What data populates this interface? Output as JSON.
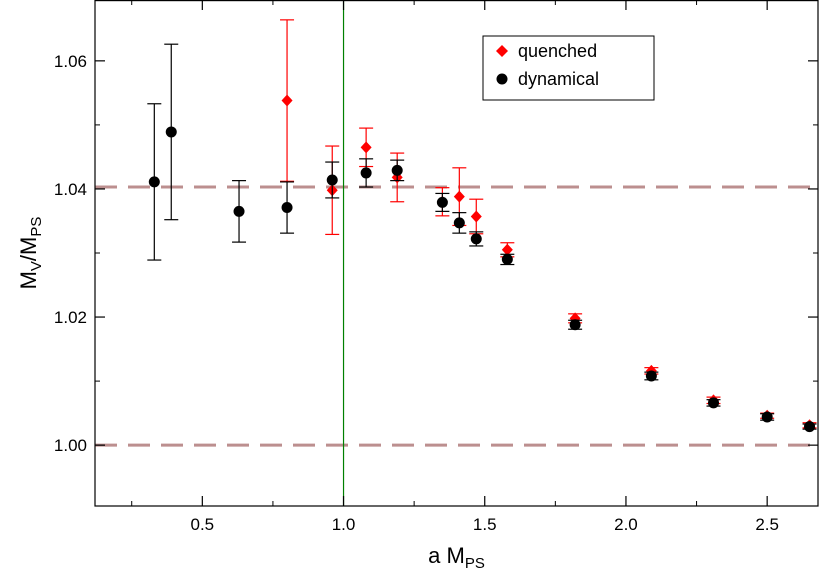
{
  "chart_data": {
    "type": "scatter",
    "xlabel": "a M",
    "xlabel_sub": "PS",
    "ylabel_parts": [
      "M",
      "V",
      "/M",
      "PS"
    ],
    "xlim": [
      0.12,
      2.68
    ],
    "ylim": [
      0.9905,
      1.0695
    ],
    "x_ticks": [
      0.5,
      1.0,
      1.5,
      2.0,
      2.5
    ],
    "x_tick_labels": [
      "0.5",
      "1.0",
      "1.5",
      "2.0",
      "2.5"
    ],
    "y_ticks": [
      1.0,
      1.02,
      1.04,
      1.06
    ],
    "y_tick_labels": [
      "1.00",
      "1.02",
      "1.04",
      "1.06"
    ],
    "grid": false,
    "legend_position": "top-right",
    "reference_lines": {
      "horizontal": [
        1.0,
        1.0403
      ],
      "horizontal_color": "#bc8f8f",
      "vertical": [
        1.0
      ],
      "vertical_color": "#008000"
    },
    "series": [
      {
        "name": "quenched",
        "marker": "diamond",
        "color": "#ff0000",
        "points": [
          {
            "x": 0.8,
            "y": 1.0538,
            "err": 0.0126
          },
          {
            "x": 0.96,
            "y": 1.0398,
            "err": 0.0069
          },
          {
            "x": 1.08,
            "y": 1.0465,
            "err": 0.003
          },
          {
            "x": 1.19,
            "y": 1.0418,
            "err": 0.0038
          },
          {
            "x": 1.35,
            "y": 1.038,
            "err": 0.0022
          },
          {
            "x": 1.41,
            "y": 1.0388,
            "err": 0.0045
          },
          {
            "x": 1.47,
            "y": 1.0357,
            "err": 0.0027
          },
          {
            "x": 1.58,
            "y": 1.0305,
            "err": 0.0011
          },
          {
            "x": 1.82,
            "y": 1.0198,
            "err": 0.0007
          },
          {
            "x": 2.09,
            "y": 1.0116,
            "err": 0.0005
          },
          {
            "x": 2.31,
            "y": 1.007,
            "err": 0.0005
          },
          {
            "x": 2.5,
            "y": 1.0046,
            "err": 0.0004
          },
          {
            "x": 2.65,
            "y": 1.0031,
            "err": 0.0004
          }
        ]
      },
      {
        "name": "dynamical",
        "marker": "circle",
        "color": "#000000",
        "points": [
          {
            "x": 0.33,
            "y": 1.0411,
            "err": 0.0122
          },
          {
            "x": 0.39,
            "y": 1.0489,
            "err": 0.0137
          },
          {
            "x": 0.63,
            "y": 1.0365,
            "err": 0.0048
          },
          {
            "x": 0.8,
            "y": 1.0371,
            "err": 0.004
          },
          {
            "x": 0.96,
            "y": 1.0414,
            "err": 0.0028
          },
          {
            "x": 1.08,
            "y": 1.0425,
            "err": 0.0022
          },
          {
            "x": 1.19,
            "y": 1.0429,
            "err": 0.0016
          },
          {
            "x": 1.35,
            "y": 1.0379,
            "err": 0.0014
          },
          {
            "x": 1.41,
            "y": 1.0347,
            "err": 0.0016
          },
          {
            "x": 1.47,
            "y": 1.0322,
            "err": 0.0011
          },
          {
            "x": 1.58,
            "y": 1.029,
            "err": 0.0008
          },
          {
            "x": 1.82,
            "y": 1.0188,
            "err": 0.0007
          },
          {
            "x": 2.09,
            "y": 1.0108,
            "err": 0.0006
          },
          {
            "x": 2.31,
            "y": 1.0066,
            "err": 0.0005
          },
          {
            "x": 2.5,
            "y": 1.0044,
            "err": 0.0005
          },
          {
            "x": 2.65,
            "y": 1.0029,
            "err": 0.0004
          }
        ]
      }
    ]
  }
}
